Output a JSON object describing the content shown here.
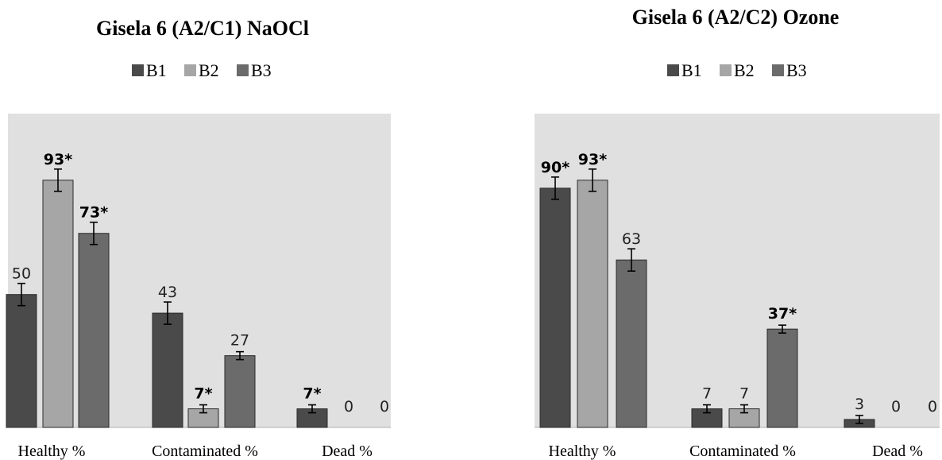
{
  "chart_data": [
    {
      "type": "bar",
      "title": "Gisela 6 (A2/C1) NaOCl",
      "categories": [
        "Healthy %",
        "Contaminated %",
        "Dead %"
      ],
      "series": [
        {
          "name": "B1",
          "values": [
            50,
            43,
            7
          ],
          "labels": [
            "50",
            "43",
            "7*"
          ],
          "bold": [
            false,
            false,
            true
          ]
        },
        {
          "name": "B2",
          "values": [
            93,
            7,
            0
          ],
          "labels": [
            "93*",
            "7*",
            "0"
          ],
          "bold": [
            true,
            true,
            false
          ]
        },
        {
          "name": "B3",
          "values": [
            73,
            27,
            0
          ],
          "labels": [
            "73*",
            "27",
            "0"
          ],
          "bold": [
            true,
            false,
            false
          ]
        }
      ],
      "ylim": [
        0,
        100
      ],
      "legend_position": "top",
      "plot_background": "#e0e0e0",
      "colors": [
        "#4a4a4a",
        "#a6a6a6",
        "#6b6b6b"
      ]
    },
    {
      "type": "bar",
      "title": "Gisela 6 (A2/C2) Ozone",
      "categories": [
        "Healthy %",
        "Contaminated %",
        "Dead %"
      ],
      "series": [
        {
          "name": "B1",
          "values": [
            90,
            7,
            3
          ],
          "labels": [
            "90*",
            "7",
            "3"
          ],
          "bold": [
            true,
            false,
            false
          ]
        },
        {
          "name": "B2",
          "values": [
            93,
            7,
            0
          ],
          "labels": [
            "93*",
            "7",
            "0"
          ],
          "bold": [
            true,
            false,
            false
          ]
        },
        {
          "name": "B3",
          "values": [
            63,
            37,
            0
          ],
          "labels": [
            "63",
            "37*",
            "0"
          ],
          "bold": [
            false,
            true,
            false
          ]
        }
      ],
      "ylim": [
        0,
        100
      ],
      "legend_position": "top",
      "plot_background": "#e0e0e0",
      "colors": [
        "#4a4a4a",
        "#a6a6a6",
        "#6b6b6b"
      ]
    }
  ]
}
